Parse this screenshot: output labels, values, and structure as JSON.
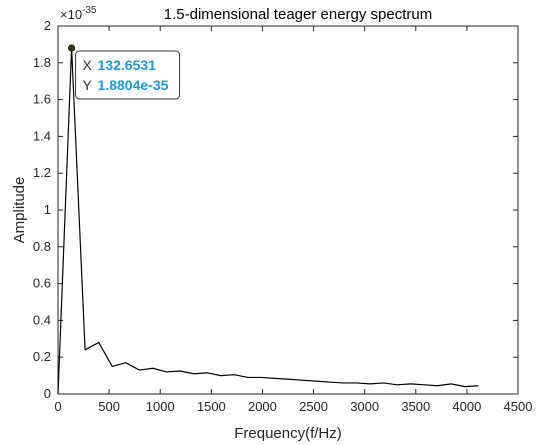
{
  "chart_data": {
    "type": "line",
    "title": "1.5-dimensional teager energy spectrum",
    "xlabel": "Frequency(f/Hz)",
    "ylabel": "Amplitude",
    "y_exponent_label": "×10",
    "y_exponent": "-35",
    "xlim": [
      0,
      4500
    ],
    "ylim": [
      0,
      2
    ],
    "x_ticks": [
      "0",
      "500",
      "1000",
      "1500",
      "2000",
      "2500",
      "3000",
      "3500",
      "4000",
      "4500"
    ],
    "y_ticks": [
      "0",
      "0.2",
      "0.4",
      "0.6",
      "0.8",
      "1",
      "1.2",
      "1.4",
      "1.6",
      "1.8",
      "2"
    ],
    "grid": false,
    "colors": {
      "line": "#000000",
      "datatip_value": "#1f97d6",
      "datatip_border": "#333333",
      "marker": "#3a3a1a"
    },
    "series": [
      {
        "x": [
          0,
          133,
          265,
          398,
          531,
          663,
          796,
          929,
          1061,
          1194,
          1327,
          1459,
          1592,
          1725,
          1857,
          1990,
          2123,
          2255,
          2388,
          2520,
          2653,
          2786,
          2918,
          3051,
          3184,
          3316,
          3449,
          3582,
          3714,
          3847,
          3980,
          4113
        ],
        "values": [
          0.0,
          1.88,
          0.24,
          0.28,
          0.15,
          0.17,
          0.13,
          0.14,
          0.12,
          0.125,
          0.11,
          0.115,
          0.1,
          0.105,
          0.09,
          0.09,
          0.085,
          0.08,
          0.075,
          0.07,
          0.065,
          0.06,
          0.06,
          0.055,
          0.06,
          0.05,
          0.055,
          0.05,
          0.045,
          0.055,
          0.04,
          0.045
        ]
      }
    ],
    "datatip": {
      "x_key": "X",
      "x_value": "132.6531",
      "y_key": "Y",
      "y_value": "1.8804e-35",
      "x": 132.6531,
      "y": 1.8804
    }
  }
}
